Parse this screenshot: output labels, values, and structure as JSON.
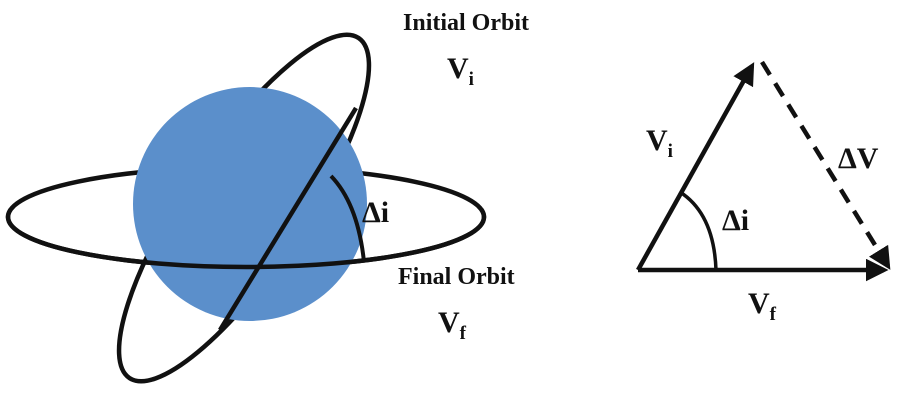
{
  "orbit_diagram": {
    "initial_orbit_label": "Initial Orbit",
    "initial_velocity": {
      "symbol": "V",
      "subscript": "i"
    },
    "final_orbit_label": "Final Orbit",
    "final_velocity": {
      "symbol": "V",
      "subscript": "f"
    },
    "inclination_change_label": "Δi"
  },
  "vector_diagram": {
    "initial_velocity": {
      "symbol": "V",
      "subscript": "i"
    },
    "final_velocity": {
      "symbol": "V",
      "subscript": "f"
    },
    "delta_v_label": "ΔV",
    "angle_label": "Δi"
  },
  "colors": {
    "planet": "#5b8fcb",
    "stroke": "#111111",
    "background": "#ffffff"
  }
}
